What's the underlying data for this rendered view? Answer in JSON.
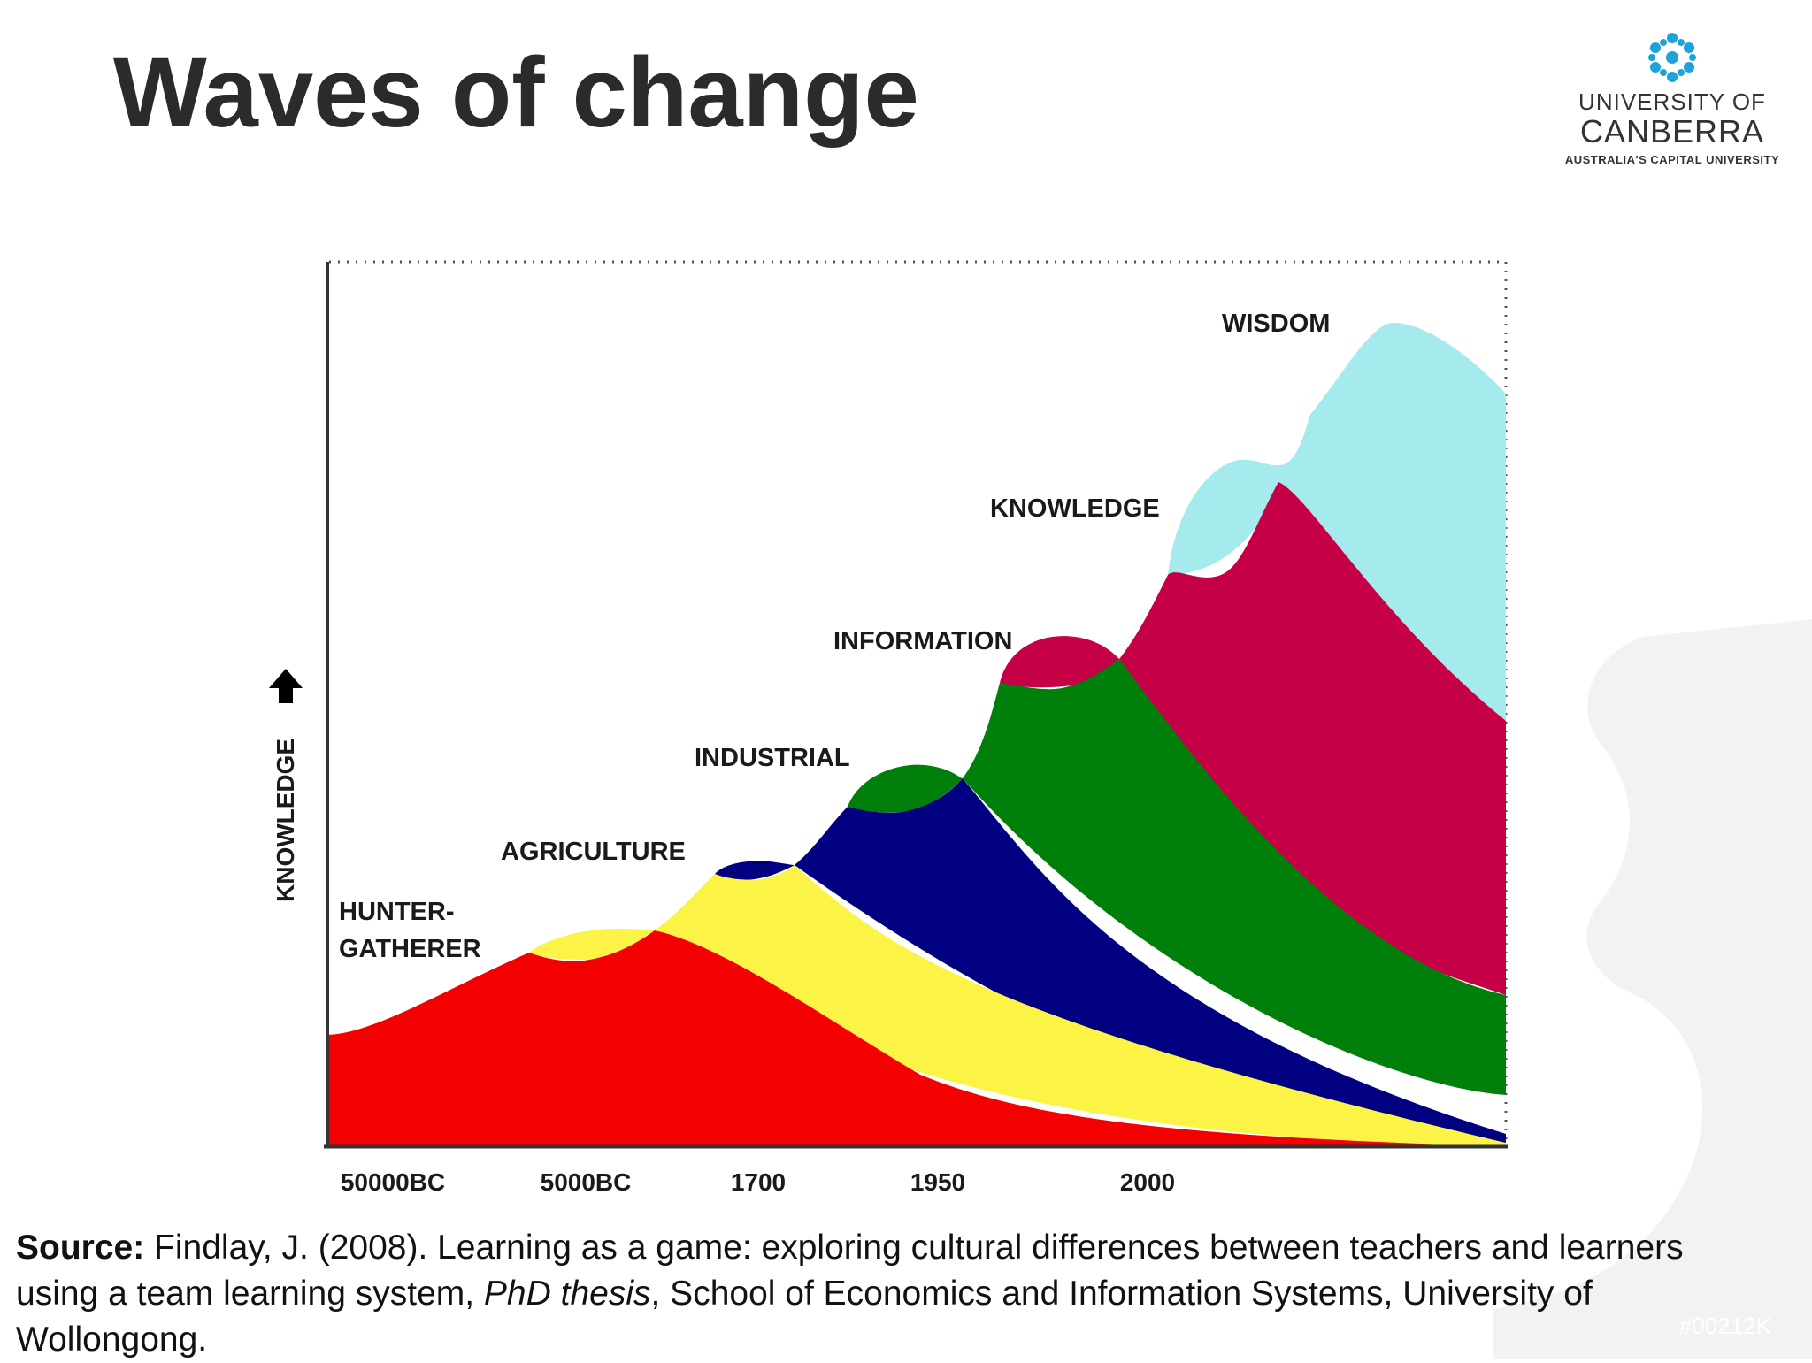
{
  "slide": {
    "title": "Waves of change"
  },
  "logo": {
    "line1": "UNIVERSITY OF",
    "line2": "CANBERRA",
    "line3": "AUSTRALIA'S CAPITAL UNIVERSITY"
  },
  "diagram": {
    "y_axis_label": "KNOWLEDGE",
    "x_ticks": [
      "50000BC",
      "5000BC",
      "1700",
      "1950",
      "2000"
    ],
    "waves": [
      {
        "label": "HUNTER-",
        "label2": "GATHERER",
        "color": "#f50000"
      },
      {
        "label": "AGRICULTURE",
        "color": "#fbf346"
      },
      {
        "label": "INDUSTRIAL",
        "color": "#000080"
      },
      {
        "label": "INFORMATION",
        "color": "#00800a"
      },
      {
        "label": "KNOWLEDGE",
        "color": "#c50046"
      },
      {
        "label": "WISDOM",
        "color": "#a5eaec"
      }
    ]
  },
  "source": {
    "label": "Source:",
    "text_before": " Findlay, J. (2008). Learning as a game: exploring cultural differences between teachers and learners using a team learning system, ",
    "italic": "PhD thesis",
    "text_after": ", School of Economics and Information Systems, University of Wollongong."
  },
  "watermark": "#00212K"
}
